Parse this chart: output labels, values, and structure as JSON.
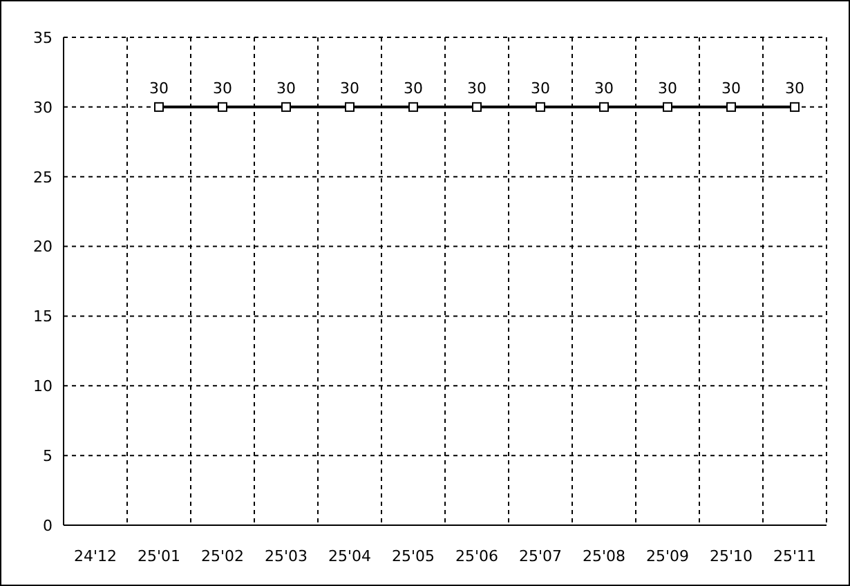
{
  "chart_data": {
    "type": "line",
    "categories": [
      "24'12",
      "25'01",
      "25'02",
      "25'03",
      "25'04",
      "25'05",
      "25'06",
      "25'07",
      "25'08",
      "25'09",
      "25'10",
      "25'11"
    ],
    "series": [
      {
        "color": "#000000",
        "values": [
          null,
          30,
          30,
          30,
          30,
          30,
          30,
          30,
          30,
          30,
          30,
          30
        ]
      }
    ],
    "ylim": [
      0,
      35
    ],
    "yticks": [
      0,
      5,
      10,
      15,
      20,
      25,
      30,
      35
    ],
    "grid": true,
    "marker": "square",
    "line_style": "solid",
    "data_labels": true
  }
}
